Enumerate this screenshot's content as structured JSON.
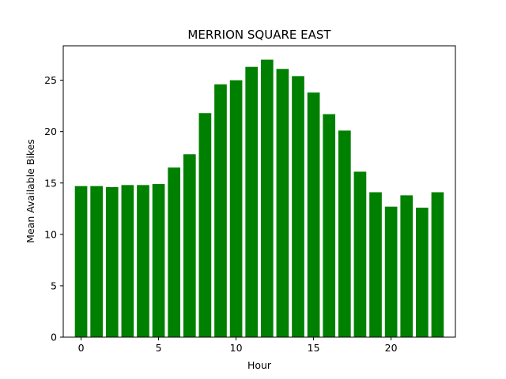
{
  "chart_data": {
    "type": "bar",
    "title": "MERRION SQUARE EAST",
    "xlabel": "Hour",
    "ylabel": "Mean Available Bikes",
    "x": [
      0,
      1,
      2,
      3,
      4,
      5,
      6,
      7,
      8,
      9,
      10,
      11,
      12,
      13,
      14,
      15,
      16,
      17,
      18,
      19,
      20,
      21,
      22,
      23
    ],
    "values": [
      14.7,
      14.7,
      14.6,
      14.8,
      14.8,
      14.9,
      16.5,
      17.8,
      21.8,
      24.6,
      25.0,
      26.3,
      27.0,
      26.1,
      25.4,
      23.8,
      21.7,
      20.1,
      16.1,
      14.1,
      12.7,
      13.8,
      12.6,
      14.1
    ],
    "xlim": [
      -1.15,
      24.15
    ],
    "ylim": [
      0,
      28.35
    ],
    "xticks": [
      "0",
      "5",
      "10",
      "15",
      "20"
    ],
    "yticks": [
      "0",
      "5",
      "10",
      "15",
      "20",
      "25"
    ],
    "bar_color": "#008000",
    "grid": false,
    "legend": "none"
  }
}
